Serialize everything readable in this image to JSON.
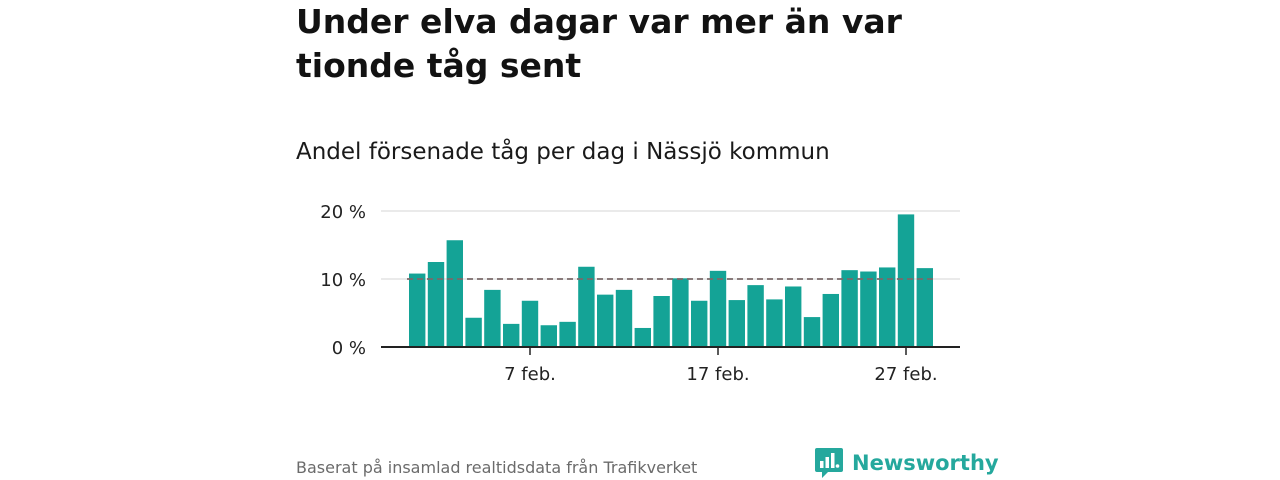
{
  "header": {
    "title": "Under elva dagar var mer än var tionde tåg sent",
    "subtitle": "Andel försenade tåg per dag i Nässjö kommun"
  },
  "footer": {
    "source": "Baserat på insamlad realtidsdata från Trafikverket",
    "brand": "Newsworthy"
  },
  "colors": {
    "bar": "#14a396",
    "reference_line": "#7a6a6a",
    "grid": "#dddddd",
    "axis": "#222222",
    "brand": "#25a89d"
  },
  "chart_data": {
    "type": "bar",
    "x": [
      "2020-02-01",
      "2020-02-02",
      "2020-02-03",
      "2020-02-04",
      "2020-02-05",
      "2020-02-06",
      "2020-02-07",
      "2020-02-08",
      "2020-02-09",
      "2020-02-10",
      "2020-02-11",
      "2020-02-12",
      "2020-02-13",
      "2020-02-14",
      "2020-02-15",
      "2020-02-16",
      "2020-02-17",
      "2020-02-18",
      "2020-02-19",
      "2020-02-20",
      "2020-02-21",
      "2020-02-22",
      "2020-02-23",
      "2020-02-24",
      "2020-02-25",
      "2020-02-26",
      "2020-02-27",
      "2020-02-28"
    ],
    "values": [
      10.8,
      12.5,
      15.7,
      4.3,
      8.4,
      3.4,
      6.8,
      3.2,
      3.7,
      11.8,
      7.7,
      8.4,
      2.8,
      7.5,
      10.1,
      6.8,
      11.2,
      6.9,
      9.1,
      7.0,
      8.9,
      4.4,
      7.8,
      11.3,
      11.1,
      11.7,
      19.5,
      11.6
    ],
    "reference_value": 10,
    "y_ticks": [
      {
        "value": 0,
        "label": "0 %"
      },
      {
        "value": 10,
        "label": "10 %"
      },
      {
        "value": 20,
        "label": "20 %"
      }
    ],
    "x_ticks": [
      {
        "index": 6,
        "label": "7 feb."
      },
      {
        "index": 16,
        "label": "17 feb."
      },
      {
        "index": 26,
        "label": "27 feb."
      }
    ],
    "ylim": [
      0,
      20
    ],
    "xlabel": "",
    "ylabel": "",
    "grid": true
  }
}
